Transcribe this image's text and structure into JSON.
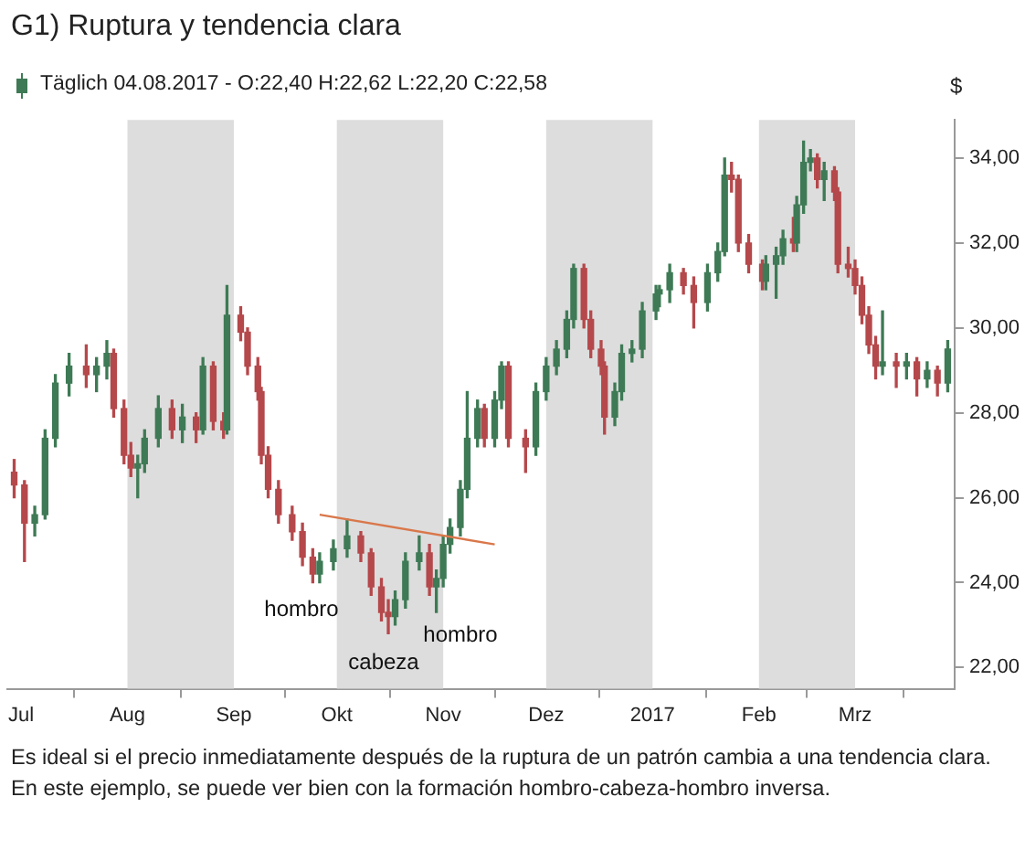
{
  "chart_data": {
    "type": "candlestick",
    "title": "G1) Ruptura y tendencia clara",
    "subtitle": "Täglich 04.08.2017 - O:22,40 H:22,62 L:22,20 C:22,58",
    "ylabel": "$",
    "x": [
      "2016-06-29",
      "2016-07-02",
      "2016-07-05",
      "2016-07-08",
      "2016-07-11",
      "2016-07-15",
      "2016-07-20",
      "2016-07-23",
      "2016-07-26",
      "2016-07-28",
      "2016-07-31",
      "2016-08-02",
      "2016-08-04",
      "2016-08-06",
      "2016-08-10",
      "2016-08-14",
      "2016-08-17",
      "2016-08-21",
      "2016-08-23",
      "2016-08-26",
      "2016-08-29",
      "2016-08-30",
      "2016-09-03",
      "2016-09-05",
      "2016-09-08",
      "2016-09-09",
      "2016-09-11",
      "2016-09-14",
      "2016-09-18",
      "2016-09-21",
      "2016-09-24",
      "2016-09-26",
      "2016-09-30",
      "2016-10-04",
      "2016-10-08",
      "2016-10-11",
      "2016-10-14",
      "2016-10-16",
      "2016-10-18",
      "2016-10-21",
      "2016-10-25",
      "2016-10-28",
      "2016-10-30",
      "2016-11-01",
      "2016-11-03",
      "2016-11-06",
      "2016-11-08",
      "2016-11-11",
      "2016-11-13",
      "2016-11-16",
      "2016-11-18",
      "2016-11-20",
      "2016-11-25",
      "2016-11-28",
      "2016-12-01",
      "2016-12-04",
      "2016-12-07",
      "2016-12-09",
      "2016-12-12",
      "2016-12-14",
      "2016-12-17",
      "2016-12-18",
      "2016-12-21",
      "2016-12-23",
      "2016-12-26",
      "2016-12-29",
      "2017-01-02",
      "2017-01-03",
      "2017-01-06",
      "2017-01-10",
      "2017-01-13",
      "2017-01-17",
      "2017-01-20",
      "2017-01-22",
      "2017-01-24",
      "2017-01-26",
      "2017-01-29",
      "2017-02-02",
      "2017-02-03",
      "2017-02-06",
      "2017-02-08",
      "2017-02-11",
      "2017-02-12",
      "2017-02-14",
      "2017-02-16",
      "2017-02-18",
      "2017-02-20",
      "2017-02-23",
      "2017-02-24",
      "2017-02-27",
      "2017-03-01",
      "2017-03-03",
      "2017-03-05",
      "2017-03-07",
      "2017-03-09",
      "2017-03-13",
      "2017-03-16",
      "2017-03-19",
      "2017-03-22",
      "2017-03-25",
      "2017-03-28"
    ],
    "ohlc": [
      [
        26.6,
        26.9,
        26.0,
        26.3
      ],
      [
        26.3,
        26.4,
        24.5,
        25.4
      ],
      [
        25.4,
        25.8,
        25.1,
        25.6
      ],
      [
        25.6,
        27.6,
        25.5,
        27.4
      ],
      [
        27.4,
        28.9,
        27.2,
        28.7
      ],
      [
        28.7,
        29.4,
        28.4,
        29.1
      ],
      [
        29.1,
        29.6,
        28.6,
        28.9
      ],
      [
        28.9,
        29.3,
        28.5,
        29.1
      ],
      [
        29.1,
        29.7,
        28.8,
        29.4
      ],
      [
        29.4,
        29.5,
        27.9,
        28.1
      ],
      [
        28.1,
        28.3,
        26.8,
        27.0
      ],
      [
        27.0,
        27.3,
        26.5,
        26.7
      ],
      [
        26.7,
        27.0,
        26.0,
        26.8
      ],
      [
        26.8,
        27.6,
        26.6,
        27.4
      ],
      [
        27.4,
        28.4,
        27.2,
        28.1
      ],
      [
        28.1,
        28.3,
        27.4,
        27.6
      ],
      [
        27.6,
        28.2,
        27.3,
        27.9
      ],
      [
        27.9,
        28.0,
        27.3,
        27.6
      ],
      [
        27.6,
        29.3,
        27.5,
        29.1
      ],
      [
        29.1,
        29.2,
        27.6,
        27.8
      ],
      [
        27.8,
        28.0,
        27.4,
        27.6
      ],
      [
        27.6,
        31.0,
        27.5,
        30.3
      ],
      [
        30.3,
        30.5,
        29.7,
        29.9
      ],
      [
        29.9,
        30.0,
        28.9,
        29.1
      ],
      [
        29.1,
        29.3,
        28.3,
        28.5
      ],
      [
        28.5,
        28.6,
        26.8,
        27.0
      ],
      [
        27.0,
        27.2,
        26.0,
        26.2
      ],
      [
        26.2,
        26.4,
        25.4,
        25.6
      ],
      [
        25.6,
        25.8,
        25.0,
        25.2
      ],
      [
        25.2,
        25.4,
        24.4,
        24.6
      ],
      [
        24.6,
        24.8,
        24.0,
        24.2
      ],
      [
        24.2,
        24.7,
        24.0,
        24.5
      ],
      [
        24.5,
        25.0,
        24.3,
        24.8
      ],
      [
        24.8,
        25.5,
        24.6,
        25.1
      ],
      [
        25.1,
        25.2,
        24.5,
        24.7
      ],
      [
        24.7,
        24.8,
        23.7,
        23.9
      ],
      [
        23.9,
        24.1,
        23.1,
        23.3
      ],
      [
        23.3,
        23.6,
        22.8,
        23.2
      ],
      [
        23.2,
        23.8,
        23.0,
        23.6
      ],
      [
        23.6,
        24.7,
        23.4,
        24.5
      ],
      [
        24.5,
        25.1,
        24.3,
        24.7
      ],
      [
        24.7,
        24.9,
        23.7,
        23.9
      ],
      [
        23.9,
        24.3,
        23.3,
        24.1
      ],
      [
        24.1,
        25.1,
        23.9,
        24.9
      ],
      [
        24.9,
        25.5,
        24.7,
        25.3
      ],
      [
        25.3,
        26.4,
        25.1,
        26.2
      ],
      [
        26.2,
        28.5,
        26.0,
        27.4
      ],
      [
        27.4,
        28.3,
        27.2,
        28.1
      ],
      [
        28.1,
        28.2,
        27.2,
        27.4
      ],
      [
        27.4,
        28.5,
        27.2,
        28.3
      ],
      [
        28.3,
        29.2,
        28.1,
        29.1
      ],
      [
        29.1,
        29.2,
        27.2,
        27.4
      ],
      [
        27.4,
        27.6,
        26.6,
        27.2
      ],
      [
        27.2,
        28.7,
        27.0,
        28.5
      ],
      [
        28.5,
        29.3,
        28.3,
        29.1
      ],
      [
        29.1,
        29.7,
        28.9,
        29.5
      ],
      [
        29.5,
        30.4,
        29.3,
        30.2
      ],
      [
        30.2,
        31.5,
        30.0,
        31.4
      ],
      [
        31.4,
        31.5,
        30.0,
        30.2
      ],
      [
        30.2,
        30.4,
        29.3,
        29.5
      ],
      [
        29.5,
        29.7,
        28.9,
        29.1
      ],
      [
        29.1,
        29.2,
        27.5,
        27.9
      ],
      [
        27.9,
        28.7,
        27.7,
        28.5
      ],
      [
        28.5,
        29.6,
        28.3,
        29.4
      ],
      [
        29.4,
        29.7,
        29.2,
        29.5
      ],
      [
        29.5,
        30.6,
        29.3,
        30.4
      ],
      [
        30.4,
        31.0,
        30.2,
        30.8
      ],
      [
        30.8,
        31.0,
        30.5,
        30.9
      ],
      [
        30.9,
        31.5,
        30.6,
        31.3
      ],
      [
        31.3,
        31.4,
        30.8,
        31.0
      ],
      [
        31.0,
        31.2,
        30.0,
        30.6
      ],
      [
        30.6,
        31.5,
        30.4,
        31.3
      ],
      [
        31.3,
        32.0,
        31.1,
        31.8
      ],
      [
        31.8,
        34.0,
        31.7,
        33.6
      ],
      [
        33.6,
        33.9,
        33.2,
        33.5
      ],
      [
        33.5,
        33.6,
        31.8,
        32.0
      ],
      [
        32.0,
        32.2,
        31.3,
        31.5
      ],
      [
        31.5,
        31.6,
        30.9,
        31.1
      ],
      [
        31.1,
        31.7,
        30.9,
        31.5
      ],
      [
        31.5,
        31.9,
        30.7,
        31.7
      ],
      [
        31.7,
        32.3,
        31.5,
        32.1
      ],
      [
        32.1,
        32.6,
        31.8,
        32.0
      ],
      [
        32.0,
        33.1,
        31.8,
        32.9
      ],
      [
        32.9,
        34.4,
        32.7,
        33.9
      ],
      [
        33.9,
        34.2,
        33.7,
        34.0
      ],
      [
        34.0,
        34.1,
        33.3,
        33.5
      ],
      [
        33.5,
        33.9,
        33.0,
        33.7
      ],
      [
        33.7,
        33.8,
        33.0,
        33.2
      ],
      [
        33.2,
        33.3,
        31.3,
        31.5
      ],
      [
        31.5,
        31.9,
        31.2,
        31.4
      ],
      [
        31.4,
        31.6,
        30.8,
        31.0
      ],
      [
        31.0,
        31.2,
        30.1,
        30.3
      ],
      [
        30.3,
        30.5,
        29.4,
        29.6
      ],
      [
        29.6,
        29.8,
        28.8,
        29.1
      ],
      [
        29.1,
        30.4,
        28.9,
        29.2
      ],
      [
        29.2,
        29.4,
        28.6,
        29.1
      ],
      [
        29.1,
        29.4,
        28.8,
        29.2
      ],
      [
        29.2,
        29.3,
        28.4,
        28.8
      ],
      [
        28.8,
        29.2,
        28.6,
        29.0
      ],
      [
        29.0,
        29.1,
        28.4,
        28.7
      ],
      [
        28.7,
        29.7,
        28.5,
        29.5
      ]
    ],
    "colors": [
      "#b5484b",
      "#b5484b",
      "#3e7a55",
      "#3e7a55",
      "#3e7a55",
      "#3e7a55",
      "#b5484b",
      "#3e7a55",
      "#3e7a55",
      "#b5484b",
      "#b5484b",
      "#b5484b",
      "#3e7a55",
      "#3e7a55",
      "#3e7a55",
      "#b5484b",
      "#3e7a55",
      "#b5484b",
      "#3e7a55",
      "#b5484b",
      "#b5484b",
      "#3e7a55",
      "#b5484b",
      "#b5484b",
      "#b5484b",
      "#b5484b",
      "#b5484b",
      "#b5484b",
      "#b5484b",
      "#b5484b",
      "#b5484b",
      "#3e7a55",
      "#3e7a55",
      "#3e7a55",
      "#b5484b",
      "#b5484b",
      "#b5484b",
      "#b5484b",
      "#3e7a55",
      "#3e7a55",
      "#3e7a55",
      "#b5484b",
      "#3e7a55",
      "#3e7a55",
      "#3e7a55",
      "#3e7a55",
      "#3e7a55",
      "#3e7a55",
      "#b5484b",
      "#3e7a55",
      "#3e7a55",
      "#b5484b",
      "#b5484b",
      "#3e7a55",
      "#3e7a55",
      "#3e7a55",
      "#3e7a55",
      "#3e7a55",
      "#b5484b",
      "#b5484b",
      "#b5484b",
      "#b5484b",
      "#3e7a55",
      "#3e7a55",
      "#3e7a55",
      "#3e7a55",
      "#3e7a55",
      "#3e7a55",
      "#3e7a55",
      "#b5484b",
      "#b5484b",
      "#3e7a55",
      "#3e7a55",
      "#3e7a55",
      "#b5484b",
      "#b5484b",
      "#b5484b",
      "#b5484b",
      "#3e7a55",
      "#3e7a55",
      "#3e7a55",
      "#b5484b",
      "#3e7a55",
      "#3e7a55",
      "#3e7a55",
      "#b5484b",
      "#3e7a55",
      "#b5484b",
      "#b5484b",
      "#b5484b",
      "#b5484b",
      "#b5484b",
      "#b5484b",
      "#b5484b",
      "#3e7a55",
      "#b5484b",
      "#3e7a55",
      "#b5484b",
      "#3e7a55",
      "#b5484b",
      "#3e7a55"
    ],
    "series": [
      {
        "type": "line",
        "color": "#d9774a",
        "x": [
          "2016-09-26",
          "2016-11-16"
        ],
        "values": [
          25.6,
          24.9
        ]
      }
    ],
    "xlim": [
      "2016-06-27",
      "2017-03-30"
    ],
    "xticks": [
      {
        "value": "2016-07-01",
        "label": "Jul"
      },
      {
        "value": "2016-08-01",
        "label": "Aug"
      },
      {
        "value": "2016-09-01",
        "label": "Sep"
      },
      {
        "value": "2016-10-01",
        "label": "Okt"
      },
      {
        "value": "2016-11-01",
        "label": "Nov"
      },
      {
        "value": "2016-12-01",
        "label": "Dez"
      },
      {
        "value": "2017-01-01",
        "label": "2017"
      },
      {
        "value": "2017-02-01",
        "label": "Feb"
      },
      {
        "value": "2017-03-01",
        "label": "Mrz"
      }
    ],
    "ylim": [
      21.5,
      34.9
    ],
    "yticks": [
      {
        "value": 22,
        "label": "22,00"
      },
      {
        "value": 24,
        "label": "24,00"
      },
      {
        "value": 26,
        "label": "26,00"
      },
      {
        "value": 28,
        "label": "28,00"
      },
      {
        "value": 30,
        "label": "30,00"
      },
      {
        "value": 32,
        "label": "32,00"
      },
      {
        "value": 34,
        "label": "34,00"
      }
    ],
    "bands": [
      {
        "axis": "x",
        "from": "2016-08-01",
        "to": "2016-09-01",
        "color": "#dddddd"
      },
      {
        "axis": "x",
        "from": "2016-10-01",
        "to": "2016-11-01",
        "color": "#dddddd"
      },
      {
        "axis": "x",
        "from": "2016-12-01",
        "to": "2017-01-01",
        "color": "#dddddd"
      },
      {
        "axis": "x",
        "from": "2017-02-01",
        "to": "2017-03-01",
        "color": "#dddddd"
      }
    ],
    "annotations": [
      "hombro",
      "cabeza",
      "hombro",
      "Es ideal si el precio inmediatamente después de la ruptura de un patrón cambia a una tendencia clara. En este ejemplo, se puede ver bien con la formación hombro-cabeza-hombro inversa."
    ]
  }
}
